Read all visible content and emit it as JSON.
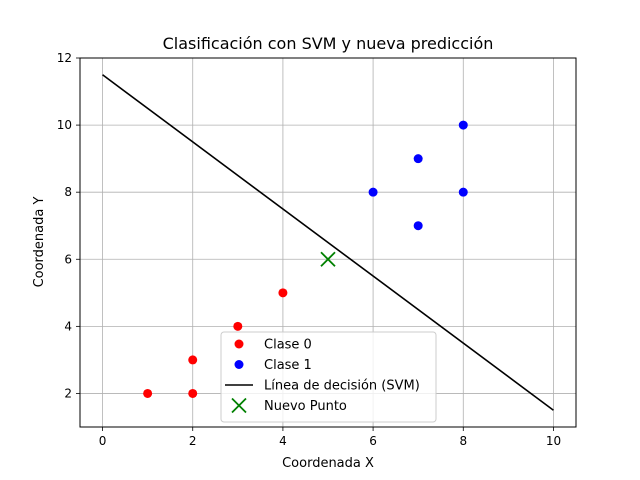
{
  "chart_data": {
    "type": "scatter",
    "title": "Clasificación con SVM y nueva predicción",
    "xlabel": "Coordenada X",
    "ylabel": "Coordenada Y",
    "xlim": [
      -0.5,
      10.5
    ],
    "ylim": [
      1,
      12
    ],
    "xticks": [
      0,
      2,
      4,
      6,
      8,
      10
    ],
    "yticks": [
      2,
      4,
      6,
      8,
      10,
      12
    ],
    "grid": true,
    "legend_position": "bottom-center",
    "series": [
      {
        "name": "Clase 0",
        "kind": "scatter",
        "marker": "circle",
        "color": "#ff0000",
        "points": [
          [
            1,
            2
          ],
          [
            2,
            2
          ],
          [
            2,
            3
          ],
          [
            3,
            4
          ],
          [
            4,
            5
          ]
        ]
      },
      {
        "name": "Clase 1",
        "kind": "scatter",
        "marker": "circle",
        "color": "#0000ff",
        "points": [
          [
            6,
            8
          ],
          [
            7,
            7
          ],
          [
            7,
            9
          ],
          [
            8,
            8
          ],
          [
            8,
            10
          ]
        ]
      },
      {
        "name": "Línea de decisión (SVM)",
        "kind": "line",
        "color": "#000000",
        "points": [
          [
            0,
            11.5
          ],
          [
            10,
            1.5
          ]
        ]
      },
      {
        "name": "Nuevo Punto",
        "kind": "scatter",
        "marker": "x",
        "color": "#008000",
        "points": [
          [
            5,
            6
          ]
        ]
      }
    ]
  }
}
